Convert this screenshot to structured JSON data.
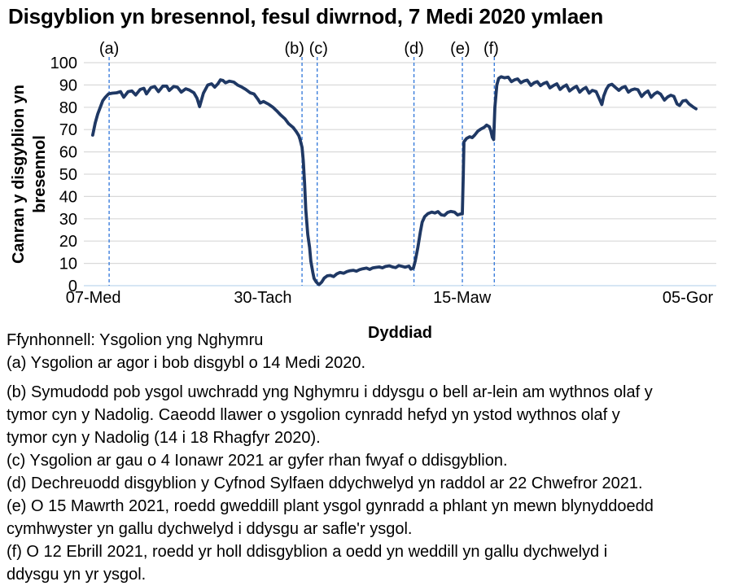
{
  "chart_data": {
    "type": "line",
    "title": "Disgyblion yn bresennol, fesul diwrnod, 7 Medi 2020 ymlaen",
    "xlabel": "Dyddiad",
    "ylabel": "Canran y disgyblion yn\nbresennol",
    "ylim": [
      0,
      100
    ],
    "grid": "horizontal",
    "legend": "none",
    "yticks": [
      0,
      10,
      20,
      30,
      40,
      50,
      60,
      70,
      80,
      90,
      100
    ],
    "xticks": [
      {
        "label": "07-Med",
        "pos": 1.5
      },
      {
        "label": "30-Tach",
        "pos": 28.3
      },
      {
        "label": "15-Maw",
        "pos": 59.8
      },
      {
        "label": "05-Gor",
        "pos": 95.5
      }
    ],
    "annotations": [
      {
        "label": "(a)",
        "pos": 4.0,
        "label_pos": 4.0
      },
      {
        "label": "(b)",
        "pos": 34.5,
        "label_pos": 33.3
      },
      {
        "label": "(c)",
        "pos": 36.9,
        "label_pos": 37.1
      },
      {
        "label": "(d)",
        "pos": 52.2,
        "label_pos": 52.2
      },
      {
        "label": "(e)",
        "pos": 59.85,
        "label_pos": 59.5
      },
      {
        "label": "(f)",
        "pos": 64.9,
        "label_pos": 64.4
      }
    ],
    "series": [
      {
        "name": "Canran y disgyblion yn bresennol",
        "x_unit": "percent-along-axis",
        "y_unit": "percent",
        "points": [
          [
            1.4,
            67.5
          ],
          [
            1.8,
            73
          ],
          [
            2.2,
            77
          ],
          [
            2.6,
            80
          ],
          [
            3.0,
            83
          ],
          [
            3.4,
            84.5
          ],
          [
            3.9,
            86
          ],
          [
            4.5,
            86.3
          ],
          [
            5.2,
            86.5
          ],
          [
            5.8,
            87
          ],
          [
            6.3,
            84.5
          ],
          [
            7.0,
            87
          ],
          [
            7.6,
            87.3
          ],
          [
            8.2,
            85.5
          ],
          [
            8.9,
            88
          ],
          [
            9.5,
            88.5
          ],
          [
            9.9,
            86
          ],
          [
            10.6,
            88.8
          ],
          [
            11.2,
            89.3
          ],
          [
            11.8,
            87
          ],
          [
            12.5,
            89.5
          ],
          [
            13.1,
            89.5
          ],
          [
            13.5,
            87.5
          ],
          [
            14.2,
            89.3
          ],
          [
            14.8,
            89
          ],
          [
            15.4,
            86.8
          ],
          [
            16.1,
            88.3
          ],
          [
            16.7,
            87.7
          ],
          [
            17.4,
            86.5
          ],
          [
            17.9,
            84
          ],
          [
            18.3,
            80.3
          ],
          [
            18.9,
            86.3
          ],
          [
            19.6,
            90
          ],
          [
            20.2,
            90.5
          ],
          [
            20.7,
            89
          ],
          [
            21.2,
            90.5
          ],
          [
            21.6,
            92.3
          ],
          [
            22.0,
            92
          ],
          [
            22.4,
            91
          ],
          [
            23.0,
            91.7
          ],
          [
            23.7,
            91.3
          ],
          [
            24.3,
            90
          ],
          [
            25.0,
            89
          ],
          [
            25.6,
            88
          ],
          [
            26.3,
            86.5
          ],
          [
            26.9,
            86
          ],
          [
            27.5,
            83.7
          ],
          [
            27.9,
            81.9
          ],
          [
            28.4,
            82.6
          ],
          [
            29.2,
            81.4
          ],
          [
            29.9,
            80
          ],
          [
            30.5,
            78.4
          ],
          [
            31.1,
            76.6
          ],
          [
            31.8,
            74.8
          ],
          [
            32.4,
            72.6
          ],
          [
            33.1,
            70.9
          ],
          [
            33.6,
            69
          ],
          [
            34.0,
            67.2
          ],
          [
            34.2,
            65.5
          ],
          [
            34.5,
            62
          ],
          [
            34.7,
            56
          ],
          [
            34.9,
            46
          ],
          [
            35.1,
            34
          ],
          [
            35.4,
            23
          ],
          [
            35.7,
            17
          ],
          [
            35.9,
            11
          ],
          [
            36.2,
            6
          ],
          [
            36.4,
            3.3
          ],
          [
            36.7,
            1.8
          ],
          [
            36.9,
            1.2
          ],
          [
            37.2,
            0.5
          ],
          [
            37.6,
            1.6
          ],
          [
            38.0,
            3.4
          ],
          [
            38.5,
            4.4
          ],
          [
            39.0,
            4.6
          ],
          [
            39.5,
            4.1
          ],
          [
            40.0,
            5.3
          ],
          [
            40.5,
            5.9
          ],
          [
            41.1,
            5.6
          ],
          [
            41.6,
            6.3
          ],
          [
            42.1,
            6.7
          ],
          [
            42.6,
            6.9
          ],
          [
            43.1,
            6.5
          ],
          [
            43.6,
            7.2
          ],
          [
            44.1,
            7.6
          ],
          [
            44.7,
            7.9
          ],
          [
            45.2,
            7.3
          ],
          [
            45.7,
            8
          ],
          [
            46.2,
            8.2
          ],
          [
            46.7,
            8.4
          ],
          [
            47.2,
            8
          ],
          [
            47.7,
            8.6
          ],
          [
            48.3,
            8.9
          ],
          [
            48.8,
            8.4
          ],
          [
            49.3,
            8.1
          ],
          [
            49.8,
            9
          ],
          [
            50.3,
            8.7
          ],
          [
            50.8,
            8.3
          ],
          [
            51.4,
            8.8
          ],
          [
            51.7,
            7.4
          ],
          [
            52.1,
            7.8
          ],
          [
            52.4,
            11
          ],
          [
            52.8,
            17
          ],
          [
            53.2,
            24
          ],
          [
            53.5,
            28.5
          ],
          [
            53.9,
            31
          ],
          [
            54.4,
            32.3
          ],
          [
            55.0,
            33
          ],
          [
            55.5,
            32.6
          ],
          [
            56.0,
            33.2
          ],
          [
            56.5,
            31.8
          ],
          [
            57.0,
            31.5
          ],
          [
            57.5,
            32.8
          ],
          [
            58.0,
            33.3
          ],
          [
            58.6,
            33
          ],
          [
            59.1,
            31.7
          ],
          [
            59.6,
            32.2
          ],
          [
            59.85,
            32.2
          ],
          [
            60.0,
            50
          ],
          [
            60.1,
            64.5
          ],
          [
            60.5,
            66
          ],
          [
            61.0,
            66.8
          ],
          [
            61.4,
            66.4
          ],
          [
            61.8,
            67.5
          ],
          [
            62.3,
            69.3
          ],
          [
            62.8,
            70.3
          ],
          [
            63.3,
            71
          ],
          [
            63.7,
            72
          ],
          [
            64.1,
            71.3
          ],
          [
            64.35,
            69.5
          ],
          [
            64.6,
            66.5
          ],
          [
            64.8,
            65.5
          ],
          [
            65.0,
            80
          ],
          [
            65.3,
            90
          ],
          [
            65.6,
            93
          ],
          [
            66.0,
            93.7
          ],
          [
            66.5,
            93.2
          ],
          [
            67.1,
            93.5
          ],
          [
            67.6,
            91.5
          ],
          [
            68.1,
            92.3
          ],
          [
            68.6,
            92.7
          ],
          [
            69.1,
            91
          ],
          [
            69.6,
            91.8
          ],
          [
            70.1,
            92.2
          ],
          [
            70.7,
            89.8
          ],
          [
            71.2,
            91
          ],
          [
            71.7,
            91.5
          ],
          [
            72.2,
            89.7
          ],
          [
            72.7,
            90.7
          ],
          [
            73.2,
            91.2
          ],
          [
            73.7,
            88.7
          ],
          [
            74.3,
            89.8
          ],
          [
            74.8,
            90.5
          ],
          [
            75.3,
            88
          ],
          [
            75.8,
            89.2
          ],
          [
            76.3,
            90
          ],
          [
            76.8,
            87.3
          ],
          [
            77.4,
            88.6
          ],
          [
            77.9,
            89.4
          ],
          [
            78.4,
            86.8
          ],
          [
            78.9,
            88.1
          ],
          [
            79.4,
            88.9
          ],
          [
            79.9,
            86.3
          ],
          [
            80.4,
            87.6
          ],
          [
            81.0,
            87
          ],
          [
            81.5,
            83.8
          ],
          [
            81.9,
            81.2
          ],
          [
            82.2,
            85
          ],
          [
            82.6,
            88
          ],
          [
            83.0,
            89.8
          ],
          [
            83.5,
            90.3
          ],
          [
            84.0,
            89
          ],
          [
            84.6,
            87.6
          ],
          [
            85.1,
            88.8
          ],
          [
            85.6,
            89.3
          ],
          [
            86.1,
            86.8
          ],
          [
            86.6,
            87.8
          ],
          [
            87.1,
            88.2
          ],
          [
            87.6,
            87.9
          ],
          [
            88.2,
            84.8
          ],
          [
            88.7,
            86.4
          ],
          [
            89.2,
            87.3
          ],
          [
            89.7,
            84.5
          ],
          [
            90.2,
            86
          ],
          [
            90.7,
            86.8
          ],
          [
            91.2,
            85.9
          ],
          [
            91.8,
            83.2
          ],
          [
            92.3,
            84.6
          ],
          [
            92.8,
            85.4
          ],
          [
            93.3,
            84.9
          ],
          [
            93.8,
            81.5
          ],
          [
            94.2,
            80.8
          ],
          [
            94.7,
            82.8
          ],
          [
            95.2,
            83.1
          ],
          [
            95.7,
            81.5
          ],
          [
            96.3,
            80.2
          ],
          [
            96.8,
            79.3
          ]
        ]
      }
    ],
    "colors": {
      "line": "#1F3864",
      "annotation": "#2E75D9",
      "gridline": "#D9D9D9",
      "axis": "#BDD7EE",
      "text": "#000000"
    }
  },
  "source": "Ffynhonnell: Ysgolion yng Nghymru",
  "footnotes": [
    {
      "id": "a",
      "text": "(a) Ysgolion ar agor i bob disgybl o 14 Medi 2020."
    },
    {
      "id": "b",
      "text": "(b) Symudodd pob ysgol uwchradd yng Nghymru i ddysgu o bell ar-lein am wythnos olaf y\ntymor cyn y Nadolig. Caeodd llawer o ysgolion cynradd hefyd yn ystod wythnos olaf y\ntymor cyn y Nadolig (14 i 18 Rhagfyr 2020)."
    },
    {
      "id": "c",
      "text": "(c) Ysgolion ar gau o 4 Ionawr 2021 ar gyfer rhan fwyaf o ddisgyblion."
    },
    {
      "id": "d",
      "text": "(d) Dechreuodd disgyblion y Cyfnod Sylfaen ddychwelyd yn raddol ar 22 Chwefror 2021."
    },
    {
      "id": "e",
      "text": "(e) O 15 Mawrth 2021, roedd gweddill plant ysgol gynradd a phlant yn mewn blynyddoedd\ncymhwyster yn gallu dychwelyd i ddysgu ar safle'r ysgol."
    },
    {
      "id": "f",
      "text": "(f) O 12 Ebrill 2021, roedd yr holl ddisgyblion a oedd yn weddill yn gallu dychwelyd i\nddysgu yn yr ysgol."
    }
  ]
}
